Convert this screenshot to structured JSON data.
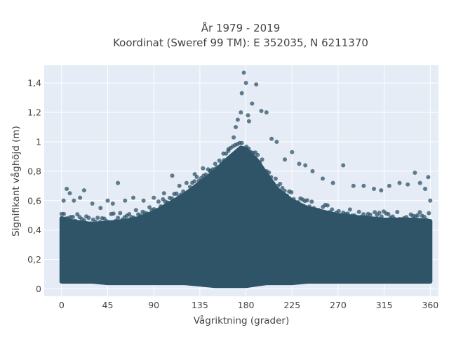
{
  "chart_data": {
    "type": "scatter",
    "title_lines": [
      "År 1979 - 2019",
      "Koordinat (Sweref 99 TM): E 352035, N 6211370"
    ],
    "xlabel": "Vågriktning (grader)",
    "ylabel": "Signifikant våghöjd (m)",
    "xlim": [
      -17,
      368
    ],
    "ylim": [
      -0.05,
      1.52
    ],
    "xticks": [
      0,
      45,
      90,
      135,
      180,
      225,
      270,
      315,
      360
    ],
    "xtick_labels": [
      "0",
      "45",
      "90",
      "135",
      "180",
      "225",
      "270",
      "315",
      "360"
    ],
    "yticks": [
      0,
      0.2,
      0.4,
      0.6,
      0.8,
      1.0,
      1.2,
      1.4
    ],
    "ytick_labels": [
      "0",
      "0,2",
      "0,4",
      "0,6",
      "0,8",
      "1",
      "1,2",
      "1,4"
    ],
    "grid": true,
    "legend": "none",
    "marker_color": "#2f5468",
    "plot_bgcolor": "#e5ecf6",
    "envelope": {
      "x": [
        0,
        10,
        20,
        30,
        45,
        60,
        75,
        90,
        105,
        120,
        135,
        150,
        160,
        170,
        175,
        180,
        190,
        200,
        210,
        225,
        240,
        270,
        300,
        315,
        330,
        345,
        360
      ],
      "y_min": [
        0.05,
        0.05,
        0.05,
        0.05,
        0.04,
        0.04,
        0.04,
        0.04,
        0.04,
        0.04,
        0.03,
        0.02,
        0.02,
        0.02,
        0.02,
        0.02,
        0.03,
        0.04,
        0.04,
        0.04,
        0.05,
        0.05,
        0.05,
        0.05,
        0.05,
        0.05,
        0.05
      ],
      "y_max_dense": [
        0.48,
        0.46,
        0.45,
        0.44,
        0.45,
        0.46,
        0.48,
        0.52,
        0.58,
        0.64,
        0.72,
        0.8,
        0.87,
        0.93,
        0.96,
        0.95,
        0.88,
        0.78,
        0.68,
        0.6,
        0.55,
        0.5,
        0.48,
        0.47,
        0.47,
        0.47,
        0.46
      ]
    },
    "outliers": {
      "x": [
        2,
        5,
        8,
        12,
        18,
        22,
        30,
        38,
        45,
        50,
        55,
        62,
        70,
        80,
        90,
        100,
        108,
        115,
        122,
        130,
        138,
        145,
        150,
        158,
        163,
        168,
        170,
        172,
        175,
        176,
        178,
        180,
        182,
        183,
        186,
        190,
        195,
        200,
        205,
        210,
        218,
        225,
        232,
        238,
        245,
        255,
        265,
        275,
        285,
        295,
        305,
        312,
        320,
        330,
        338,
        345,
        350,
        355,
        358,
        360
      ],
      "y": [
        0.6,
        0.68,
        0.65,
        0.6,
        0.62,
        0.67,
        0.58,
        0.55,
        0.6,
        0.58,
        0.72,
        0.6,
        0.62,
        0.6,
        0.62,
        0.65,
        0.77,
        0.7,
        0.72,
        0.78,
        0.82,
        0.8,
        0.85,
        0.92,
        0.95,
        1.03,
        1.1,
        1.15,
        1.2,
        1.33,
        1.47,
        1.4,
        1.18,
        1.14,
        1.26,
        1.39,
        1.21,
        1.2,
        1.02,
        1.0,
        0.88,
        0.93,
        0.85,
        0.84,
        0.8,
        0.75,
        0.72,
        0.84,
        0.7,
        0.7,
        0.68,
        0.67,
        0.7,
        0.72,
        0.71,
        0.79,
        0.72,
        0.68,
        0.76,
        0.6
      ]
    }
  }
}
